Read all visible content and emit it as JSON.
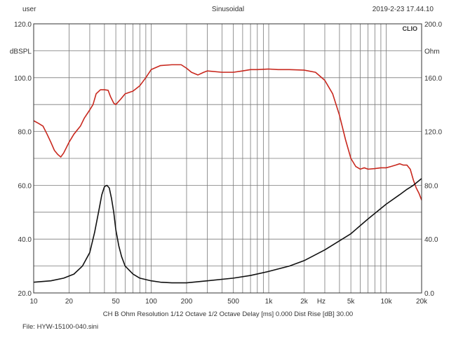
{
  "header": {
    "left": "user",
    "center": "Sinusoidal",
    "right": "2019-2-23 17.44.10"
  },
  "footer": {
    "settings": "CH B   Ohm   Resolution 1/12 Octave   1/2 Octave   Delay [ms] 0.000   Dist Rise [dB] 30.00",
    "file": "File: HYW-15100-040.sini"
  },
  "chart_data": {
    "type": "line",
    "brand": "CLIO",
    "x_scale": "log",
    "xlim": [
      10,
      20000
    ],
    "x_ticks": [
      10,
      20,
      50,
      100,
      200,
      500,
      1000,
      2000,
      5000,
      10000,
      20000
    ],
    "x_tick_labels": [
      "10",
      "20",
      "50",
      "100",
      "200",
      "500",
      "1k",
      "2k",
      "5k",
      "10k",
      "20k"
    ],
    "x_unit_label": "Hz",
    "x_unit_label_freq": 2800,
    "y_left": {
      "label": "dBSPL",
      "ylim": [
        20,
        120
      ],
      "ticks": [
        20,
        40,
        60,
        80,
        100,
        120
      ],
      "tick_labels": [
        "20.0",
        "40.0",
        "60.0",
        "80.0",
        "100.0",
        "120.0"
      ]
    },
    "y_right": {
      "label": "Ohm",
      "ylim": [
        0,
        200
      ],
      "ticks": [
        0,
        40,
        80,
        120,
        160,
        200
      ],
      "tick_labels": [
        "0.0",
        "40.0",
        "80.0",
        "120.0",
        "160.0",
        "200.0"
      ]
    },
    "grid": true,
    "series": [
      {
        "axis": "left",
        "color": "#c8281e",
        "points": [
          [
            10,
            84
          ],
          [
            11,
            83
          ],
          [
            12,
            82
          ],
          [
            13,
            79
          ],
          [
            14,
            76
          ],
          [
            15,
            73
          ],
          [
            16,
            71.5
          ],
          [
            17,
            70.5
          ],
          [
            18,
            72
          ],
          [
            20,
            76
          ],
          [
            22,
            79
          ],
          [
            25,
            82
          ],
          [
            27,
            85
          ],
          [
            30,
            88
          ],
          [
            32,
            90
          ],
          [
            34,
            94
          ],
          [
            37,
            95.5
          ],
          [
            40,
            95.5
          ],
          [
            43,
            95.3
          ],
          [
            45,
            93
          ],
          [
            48,
            90.5
          ],
          [
            50,
            90
          ],
          [
            55,
            92
          ],
          [
            60,
            94
          ],
          [
            70,
            95
          ],
          [
            80,
            97
          ],
          [
            90,
            100
          ],
          [
            100,
            103
          ],
          [
            120,
            104.5
          ],
          [
            150,
            104.8
          ],
          [
            180,
            104.8
          ],
          [
            200,
            103.5
          ],
          [
            220,
            102
          ],
          [
            250,
            101
          ],
          [
            280,
            102
          ],
          [
            300,
            102.5
          ],
          [
            400,
            102
          ],
          [
            500,
            102
          ],
          [
            600,
            102.5
          ],
          [
            700,
            103
          ],
          [
            800,
            103
          ],
          [
            1000,
            103.2
          ],
          [
            1200,
            103
          ],
          [
            1500,
            103
          ],
          [
            2000,
            102.8
          ],
          [
            2500,
            102
          ],
          [
            3000,
            99
          ],
          [
            3500,
            94
          ],
          [
            4000,
            86
          ],
          [
            4500,
            77
          ],
          [
            5000,
            70
          ],
          [
            5500,
            67
          ],
          [
            6000,
            66
          ],
          [
            6500,
            66.5
          ],
          [
            7000,
            66
          ],
          [
            8000,
            66.2
          ],
          [
            9000,
            66.5
          ],
          [
            10000,
            66.5
          ],
          [
            11000,
            67
          ],
          [
            12000,
            67.5
          ],
          [
            13000,
            68
          ],
          [
            14000,
            67.5
          ],
          [
            15000,
            67.5
          ],
          [
            16000,
            66
          ],
          [
            17000,
            62
          ],
          [
            18000,
            59
          ],
          [
            19000,
            57
          ],
          [
            20000,
            54.5
          ]
        ]
      },
      {
        "axis": "right",
        "color": "#111111",
        "points": [
          [
            10,
            8
          ],
          [
            14,
            9
          ],
          [
            18,
            11
          ],
          [
            22,
            14
          ],
          [
            26,
            20
          ],
          [
            30,
            30
          ],
          [
            33,
            45
          ],
          [
            36,
            62
          ],
          [
            38,
            73
          ],
          [
            40,
            79
          ],
          [
            42,
            80
          ],
          [
            44,
            78
          ],
          [
            46,
            70
          ],
          [
            48,
            60
          ],
          [
            50,
            47
          ],
          [
            53,
            35
          ],
          [
            56,
            27
          ],
          [
            60,
            20
          ],
          [
            70,
            14
          ],
          [
            80,
            11
          ],
          [
            100,
            9
          ],
          [
            120,
            8
          ],
          [
            150,
            7.5
          ],
          [
            200,
            7.5
          ],
          [
            300,
            9
          ],
          [
            500,
            11
          ],
          [
            700,
            13
          ],
          [
            1000,
            16
          ],
          [
            1500,
            20
          ],
          [
            2000,
            24
          ],
          [
            3000,
            32
          ],
          [
            5000,
            44
          ],
          [
            7000,
            55
          ],
          [
            10000,
            66
          ],
          [
            13000,
            73
          ],
          [
            15000,
            77
          ],
          [
            17000,
            80
          ],
          [
            20000,
            85
          ]
        ]
      }
    ]
  }
}
